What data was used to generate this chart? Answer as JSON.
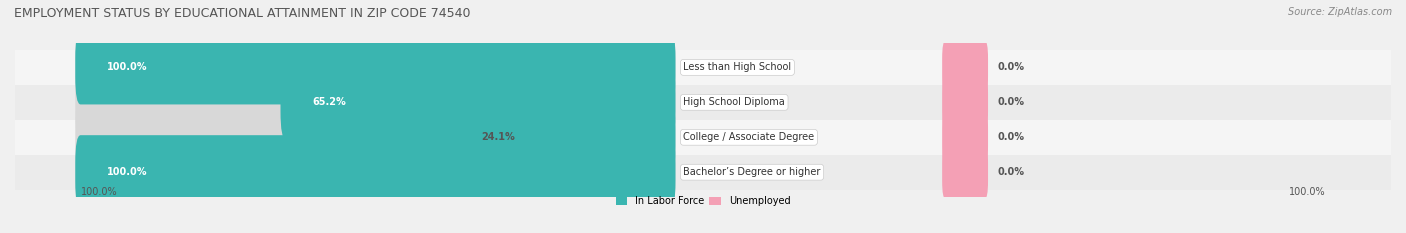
{
  "title": "EMPLOYMENT STATUS BY EDUCATIONAL ATTAINMENT IN ZIP CODE 74540",
  "source": "Source: ZipAtlas.com",
  "categories": [
    "Less than High School",
    "High School Diploma",
    "College / Associate Degree",
    "Bachelor’s Degree or higher"
  ],
  "labor_force_values": [
    100.0,
    65.2,
    24.1,
    100.0
  ],
  "unemployed_values": [
    0.0,
    0.0,
    0.0,
    0.0
  ],
  "labor_force_color": "#3ab5b0",
  "unemployed_color": "#f4a0b5",
  "row_bg_even": "#ebebeb",
  "row_bg_odd": "#f5f5f5",
  "bar_bg_color": "#d8d8d8",
  "axis_label_left": "100.0%",
  "axis_label_right": "100.0%",
  "max_value": 100.0,
  "figsize": [
    14.06,
    2.33
  ],
  "dpi": 100
}
